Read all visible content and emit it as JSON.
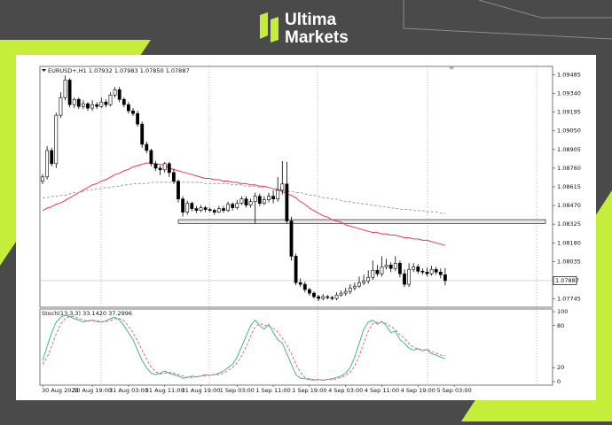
{
  "brand": {
    "line1": "Ultima",
    "line2": "Markets"
  },
  "chart_data": {
    "type": "candlestick",
    "title": "EURUSD+,H1 1.07932 1.07983 1.07850 1.07887",
    "categories": [
      "30 Aug 2023",
      null,
      null,
      null,
      null,
      null,
      null,
      null,
      null,
      null,
      null,
      "30 Aug 19:00",
      null,
      null,
      null,
      null,
      null,
      null,
      null,
      "31 Aug 03:00",
      null,
      null,
      null,
      null,
      null,
      null,
      null,
      "31 Aug 11:00",
      null,
      null,
      null,
      null,
      null,
      null,
      null,
      "31 Aug 19:00",
      null,
      null,
      null,
      null,
      null,
      null,
      null,
      "1 Sep 03:00",
      null,
      null,
      null,
      null,
      null,
      null,
      null,
      "1 Sep 11:00",
      null,
      null,
      null,
      null,
      null,
      null,
      null,
      "1 Sep 19:00",
      null,
      null,
      null,
      null,
      null,
      null,
      null,
      "4 Sep 03:00",
      null,
      null,
      null,
      null,
      null,
      null,
      null,
      "4 Sep 11:00",
      null,
      null,
      null,
      null,
      null,
      null,
      null,
      "4 Sep 19:00",
      null,
      null,
      null,
      null,
      null,
      null,
      null,
      "5 Sep 03:00"
    ],
    "candles": [
      [
        1.08658,
        1.08713,
        1.08637,
        1.08692
      ],
      [
        1.08692,
        1.08931,
        1.08672,
        1.08897
      ],
      [
        1.08897,
        1.08918,
        1.08774,
        1.08795
      ],
      [
        1.08795,
        1.09191,
        1.0876,
        1.09171
      ],
      [
        1.09171,
        1.09349,
        1.0915,
        1.09308
      ],
      [
        1.09308,
        1.09479,
        1.09287,
        1.09444
      ],
      [
        1.09444,
        1.09458,
        1.09232,
        1.09253
      ],
      [
        1.09253,
        1.09308,
        1.09226,
        1.09294
      ],
      [
        1.09294,
        1.09308,
        1.09219,
        1.09239
      ],
      [
        1.09239,
        1.09287,
        1.09219,
        1.0926
      ],
      [
        1.0926,
        1.09273,
        1.09205,
        1.09226
      ],
      [
        1.09226,
        1.09287,
        1.09205,
        1.09253
      ],
      [
        1.09253,
        1.09273,
        1.09219,
        1.09239
      ],
      [
        1.09239,
        1.09308,
        1.09226,
        1.09273
      ],
      [
        1.09273,
        1.09294,
        1.09232,
        1.09253
      ],
      [
        1.09253,
        1.09349,
        1.09239,
        1.09328
      ],
      [
        1.09328,
        1.0939,
        1.09308,
        1.09369
      ],
      [
        1.09369,
        1.0939,
        1.09273,
        1.09294
      ],
      [
        1.09294,
        1.09308,
        1.09232,
        1.09253
      ],
      [
        1.09253,
        1.09273,
        1.09184,
        1.09205
      ],
      [
        1.09205,
        1.09226,
        1.09164,
        1.09184
      ],
      [
        1.09184,
        1.09205,
        1.09082,
        1.09102
      ],
      [
        1.09102,
        1.09123,
        1.08918,
        1.08945
      ],
      [
        1.08945,
        1.08966,
        1.08877,
        1.08897
      ],
      [
        1.08897,
        1.08911,
        1.08774,
        1.08795
      ],
      [
        1.08795,
        1.08815,
        1.0874,
        1.0876
      ],
      [
        1.0876,
        1.08781,
        1.08706,
        1.08747
      ],
      [
        1.08747,
        1.08808,
        1.08726,
        1.08795
      ],
      [
        1.08795,
        1.08808,
        1.08692,
        1.08726
      ],
      [
        1.08726,
        1.08754,
        1.08637,
        1.08658
      ],
      [
        1.08658,
        1.08672,
        1.08494,
        1.08521
      ],
      [
        1.08521,
        1.08542,
        1.08384,
        1.08418
      ],
      [
        1.08418,
        1.08507,
        1.08398,
        1.08487
      ],
      [
        1.08487,
        1.085,
        1.08425,
        1.08446
      ],
      [
        1.08446,
        1.08466,
        1.08412,
        1.08432
      ],
      [
        1.08432,
        1.08473,
        1.08418,
        1.08453
      ],
      [
        1.08453,
        1.08466,
        1.08418,
        1.08439
      ],
      [
        1.08439,
        1.08453,
        1.08418,
        1.08432
      ],
      [
        1.08432,
        1.08446,
        1.08398,
        1.08418
      ],
      [
        1.08418,
        1.08466,
        1.08412,
        1.08446
      ],
      [
        1.08446,
        1.08466,
        1.08412,
        1.08432
      ],
      [
        1.08432,
        1.085,
        1.08418,
        1.0848
      ],
      [
        1.0848,
        1.08494,
        1.08432,
        1.08453
      ],
      [
        1.08453,
        1.08514,
        1.08439,
        1.08487
      ],
      [
        1.08487,
        1.08542,
        1.08473,
        1.08521
      ],
      [
        1.08521,
        1.08542,
        1.08453,
        1.08473
      ],
      [
        1.08473,
        1.08521,
        1.08453,
        1.085
      ],
      [
        1.085,
        1.08569,
        1.0833,
        1.08542
      ],
      [
        1.08542,
        1.08562,
        1.08466,
        1.08487
      ],
      [
        1.08487,
        1.08542,
        1.08473,
        1.08514
      ],
      [
        1.08514,
        1.08569,
        1.08494,
        1.08542
      ],
      [
        1.08542,
        1.08589,
        1.08487,
        1.08521
      ],
      [
        1.08521,
        1.08692,
        1.085,
        1.08589
      ],
      [
        1.08589,
        1.08815,
        1.08555,
        1.08637
      ],
      [
        1.08637,
        1.08808,
        1.0833,
        1.0835
      ],
      [
        1.0835,
        1.08384,
        1.08042,
        1.08076
      ],
      [
        1.08076,
        1.08097,
        1.07851,
        1.07871
      ],
      [
        1.07871,
        1.07905,
        1.07837,
        1.07858
      ],
      [
        1.07858,
        1.07878,
        1.07796,
        1.07817
      ],
      [
        1.07817,
        1.0783,
        1.07769,
        1.07789
      ],
      [
        1.07789,
        1.07803,
        1.07748,
        1.07762
      ],
      [
        1.07762,
        1.07775,
        1.07728,
        1.07748
      ],
      [
        1.07748,
        1.07782,
        1.07734,
        1.07762
      ],
      [
        1.07762,
        1.07775,
        1.07741,
        1.07755
      ],
      [
        1.07755,
        1.07769,
        1.07734,
        1.07748
      ],
      [
        1.07748,
        1.07796,
        1.07734,
        1.07775
      ],
      [
        1.07775,
        1.0781,
        1.07762,
        1.07789
      ],
      [
        1.07789,
        1.0783,
        1.07769,
        1.07803
      ],
      [
        1.07803,
        1.07858,
        1.07782,
        1.0783
      ],
      [
        1.0783,
        1.07871,
        1.0781,
        1.07844
      ],
      [
        1.07844,
        1.07919,
        1.0783,
        1.07871
      ],
      [
        1.07871,
        1.07933,
        1.07851,
        1.07885
      ],
      [
        1.07885,
        1.07967,
        1.07864,
        1.07912
      ],
      [
        1.07912,
        1.08042,
        1.07892,
        1.07967
      ],
      [
        1.07967,
        1.08008,
        1.07919,
        1.0794
      ],
      [
        1.0794,
        1.08076,
        1.07919,
        1.07994
      ],
      [
        1.07994,
        1.08056,
        1.07974,
        1.08008
      ],
      [
        1.08008,
        1.08029,
        1.07953,
        1.07981
      ],
      [
        1.07981,
        1.08076,
        1.0796,
        1.08022
      ],
      [
        1.08022,
        1.08042,
        1.07912,
        1.0794
      ],
      [
        1.0794,
        1.07974,
        1.07837,
        1.07858
      ],
      [
        1.07858,
        1.08022,
        1.07837,
        1.07974
      ],
      [
        1.07974,
        1.08022,
        1.07953,
        1.07994
      ],
      [
        1.07994,
        1.08015,
        1.0794,
        1.0796
      ],
      [
        1.0796,
        1.07981,
        1.07933,
        1.07953
      ],
      [
        1.07953,
        1.07988,
        1.07919,
        1.0794
      ],
      [
        1.0794,
        1.08001,
        1.07926,
        1.07974
      ],
      [
        1.07974,
        1.07994,
        1.07933,
        1.07953
      ],
      [
        1.07953,
        1.07981,
        1.07905,
        1.07933
      ],
      [
        1.07932,
        1.07983,
        1.0785,
        1.07887
      ],
      null,
      null
    ],
    "bull_color": "#ffffff",
    "bear_color": "#000000",
    "overlays": [
      {
        "color": "#e8384f",
        "style": "solid",
        "values": [
          1.0843,
          1.0845,
          1.0846,
          1.0848,
          1.0849,
          1.0851,
          1.0853,
          1.0855,
          1.0857,
          1.0859,
          1.0861,
          1.0863,
          1.0864,
          1.0866,
          1.0867,
          1.0869,
          1.0871,
          1.0872,
          1.0874,
          1.0875,
          1.0877,
          1.0878,
          1.0879,
          1.088,
          1.088,
          1.0879,
          1.0879,
          1.0878,
          1.0876,
          1.0875,
          1.0874,
          1.0873,
          1.0872,
          1.0871,
          1.087,
          1.0869,
          1.0868,
          1.0868,
          1.0867,
          1.0867,
          1.0866,
          1.0866,
          1.0865,
          1.0865,
          1.0864,
          1.0864,
          1.0863,
          1.0863,
          1.0862,
          1.0862,
          1.0861,
          1.086,
          1.0859,
          1.0858,
          1.0856,
          1.0855,
          1.0853,
          1.085,
          1.0848,
          1.0845,
          1.0843,
          1.0841,
          1.0839,
          1.0838,
          1.0836,
          1.0835,
          1.0834,
          1.0832,
          1.0831,
          1.083,
          1.0829,
          1.0828,
          1.0827,
          1.0826,
          1.0826,
          1.0825,
          1.0825,
          1.0824,
          1.0824,
          1.0823,
          1.0822,
          1.0822,
          1.0821,
          1.0821,
          1.082,
          1.082,
          1.0819,
          1.0818,
          1.0817,
          1.0816,
          null,
          null
        ]
      },
      {
        "color": "#a0a0a0",
        "style": "dashed",
        "values": [
          1.0853,
          1.0853,
          1.0854,
          1.0854,
          1.0855,
          1.0855,
          1.0856,
          1.0857,
          1.0857,
          1.0858,
          1.0859,
          1.0859,
          1.086,
          1.086,
          1.0861,
          1.0861,
          1.0862,
          1.0862,
          1.0863,
          1.0863,
          1.0864,
          1.0864,
          1.0864,
          1.0864,
          1.0865,
          1.0865,
          1.0865,
          1.0865,
          1.0865,
          1.0865,
          1.0865,
          1.0865,
          1.0865,
          1.0865,
          1.0865,
          1.0865,
          1.0864,
          1.0864,
          1.0864,
          1.0864,
          1.0864,
          1.0864,
          1.0863,
          1.0863,
          1.0863,
          1.0862,
          1.0862,
          1.0862,
          1.0861,
          1.0861,
          1.0861,
          1.086,
          1.086,
          1.0859,
          1.0858,
          1.0858,
          1.0857,
          1.0857,
          1.0856,
          1.0855,
          1.0855,
          1.0854,
          1.0853,
          1.0853,
          1.0852,
          1.0852,
          1.0851,
          1.085,
          1.085,
          1.0849,
          1.0849,
          1.0848,
          1.0848,
          1.0847,
          1.0847,
          1.0846,
          1.0846,
          1.0845,
          1.0845,
          1.0844,
          1.0844,
          1.0844,
          1.0843,
          1.0843,
          1.0843,
          1.0842,
          1.0842,
          1.0842,
          1.0841,
          1.0841,
          null,
          null
        ]
      }
    ],
    "current_price": 1.07887,
    "support_zone": [
      1.0833,
      1.0836
    ],
    "ylim": [
      1.0768,
      1.0955
    ],
    "yticks": [
      1.09485,
      {
        "value": 1.0934,
        "label": "1.09340"
      },
      1.09195,
      {
        "value": 1.0905,
        "label": "1.09050"
      },
      1.08905,
      {
        "value": 1.0876,
        "label": "1.08760"
      },
      1.08615,
      {
        "value": 1.0847,
        "label": "1.08470"
      },
      1.08325,
      {
        "value": 1.0818,
        "label": "1.08180"
      },
      1.08035,
      1.07745
    ],
    "stoch": {
      "title": "Stoch(13,3,3) 33.1420 37.2996",
      "ylim": [
        0,
        100
      ],
      "yticks": [
        100,
        80,
        20,
        0
      ],
      "series": [
        {
          "color": "#3fb98a",
          "style": "solid",
          "values": [
            30,
            50,
            70,
            85,
            92,
            95,
            93,
            90,
            88,
            85,
            87,
            88,
            86,
            85,
            87,
            90,
            92,
            88,
            80,
            70,
            60,
            45,
            30,
            20,
            12,
            10,
            12,
            15,
            12,
            10,
            8,
            5,
            6,
            8,
            7,
            8,
            10,
            9,
            10,
            12,
            15,
            20,
            25,
            35,
            50,
            65,
            80,
            88,
            80,
            75,
            82,
            70,
            60,
            55,
            40,
            25,
            10,
            5,
            4,
            3,
            2,
            3,
            2,
            3,
            4,
            6,
            8,
            12,
            20,
            35,
            55,
            75,
            85,
            88,
            82,
            86,
            80,
            70,
            72,
            60,
            55,
            48,
            45,
            47,
            44,
            46,
            40,
            38,
            35,
            33.142,
            null,
            null
          ]
        },
        {
          "color": "#e36b6b",
          "style": "dashed",
          "values": [
            25,
            35,
            50,
            68,
            82,
            90,
            93,
            93,
            90,
            88,
            87,
            87,
            87,
            86,
            86,
            87,
            90,
            90,
            87,
            79,
            70,
            58,
            45,
            32,
            21,
            14,
            11,
            12,
            13,
            12,
            10,
            8,
            6,
            6,
            7,
            8,
            8,
            9,
            10,
            10,
            12,
            16,
            20,
            27,
            37,
            50,
            65,
            78,
            83,
            81,
            79,
            76,
            71,
            62,
            52,
            40,
            25,
            13,
            6,
            4,
            3,
            3,
            2,
            3,
            3,
            4,
            6,
            9,
            13,
            22,
            37,
            55,
            72,
            83,
            85,
            85,
            83,
            79,
            74,
            67,
            62,
            54,
            49,
            47,
            45,
            46,
            43,
            41,
            38,
            37.2996,
            null,
            null
          ]
        }
      ]
    }
  }
}
